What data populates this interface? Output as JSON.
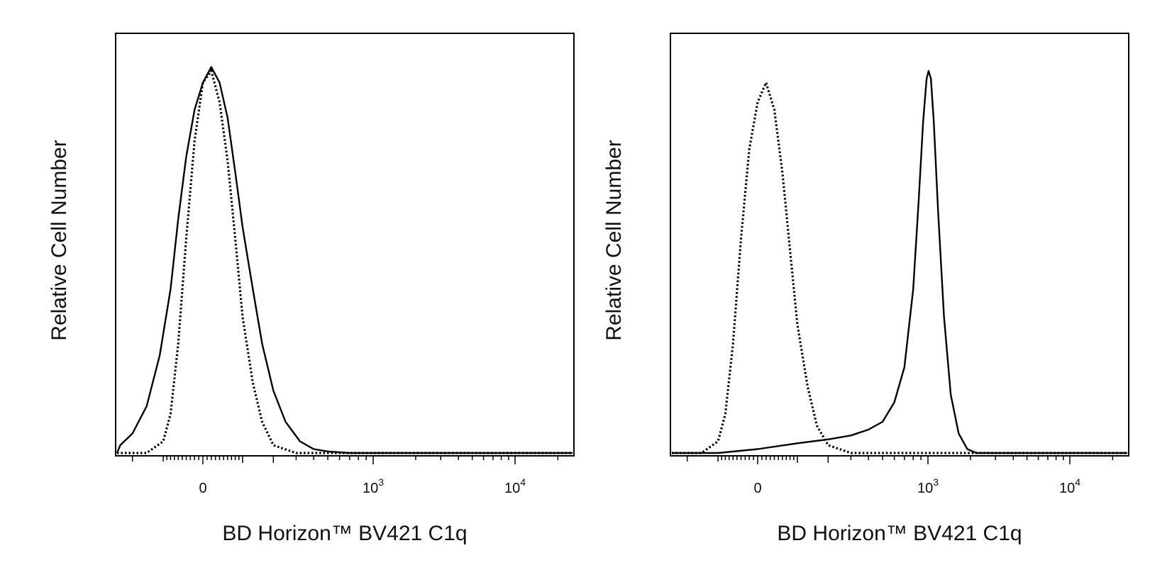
{
  "chart_data": [
    {
      "type": "line",
      "xlabel": "BD Horizon™ BV421 C1q",
      "ylabel": "Relative Cell Number",
      "x_scale": "biexponential",
      "x_ticks": [
        {
          "value": 0,
          "base": "0",
          "exp": ""
        },
        {
          "value": 1000,
          "base": "10",
          "exp": "3"
        },
        {
          "value": 10000,
          "base": "10",
          "exp": "4"
        }
      ],
      "ylim": [
        0,
        100
      ],
      "grid": false,
      "series": [
        {
          "style": "solid",
          "x": [
            -320,
            -250,
            -200,
            -150,
            -110,
            -80,
            -60,
            -40,
            -20,
            0,
            20,
            40,
            60,
            80,
            100,
            130,
            160,
            200,
            250,
            320,
            400,
            500,
            700,
            1000,
            10000,
            30000
          ],
          "y": [
            0,
            2,
            5,
            12,
            25,
            42,
            60,
            76,
            88,
            95,
            99,
            95,
            86,
            72,
            58,
            42,
            28,
            16,
            8,
            3,
            1,
            0.4,
            0,
            0,
            0,
            0
          ]
        },
        {
          "style": "dotted",
          "x": [
            -320,
            -150,
            -100,
            -80,
            -60,
            -40,
            -20,
            0,
            20,
            40,
            60,
            80,
            100,
            130,
            160,
            200,
            300,
            1000,
            10000,
            30000
          ],
          "y": [
            0,
            0,
            3,
            10,
            28,
            55,
            80,
            95,
            98,
            90,
            75,
            55,
            35,
            18,
            8,
            2,
            0,
            0,
            0,
            0
          ]
        }
      ]
    },
    {
      "type": "line",
      "xlabel": "BD Horizon™ BV421 C1q",
      "ylabel": "Relative Cell Number",
      "x_scale": "biexponential",
      "x_ticks": [
        {
          "value": 0,
          "base": "0",
          "exp": ""
        },
        {
          "value": 1000,
          "base": "10",
          "exp": "3"
        },
        {
          "value": 10000,
          "base": "10",
          "exp": "4"
        }
      ],
      "ylim": [
        0,
        100
      ],
      "grid": false,
      "series": [
        {
          "style": "solid",
          "x": [
            -320,
            -100,
            0,
            100,
            200,
            300,
            400,
            500,
            600,
            700,
            800,
            870,
            930,
            980,
            1010,
            1050,
            1100,
            1180,
            1300,
            1450,
            1650,
            1900,
            2200,
            10000,
            30000
          ],
          "y": [
            0,
            0,
            1,
            2.5,
            3.5,
            4.5,
            6,
            8,
            13,
            22,
            42,
            65,
            85,
            96,
            98,
            96,
            85,
            62,
            35,
            15,
            5,
            1,
            0,
            0,
            0
          ]
        },
        {
          "style": "dotted",
          "x": [
            -320,
            -150,
            -100,
            -80,
            -60,
            -40,
            -20,
            0,
            20,
            40,
            60,
            80,
            100,
            130,
            160,
            200,
            300,
            1000,
            10000,
            30000
          ],
          "y": [
            0,
            0,
            3,
            10,
            28,
            55,
            78,
            90,
            95,
            88,
            72,
            52,
            33,
            17,
            7,
            2,
            0,
            0,
            0,
            0
          ]
        }
      ]
    }
  ]
}
